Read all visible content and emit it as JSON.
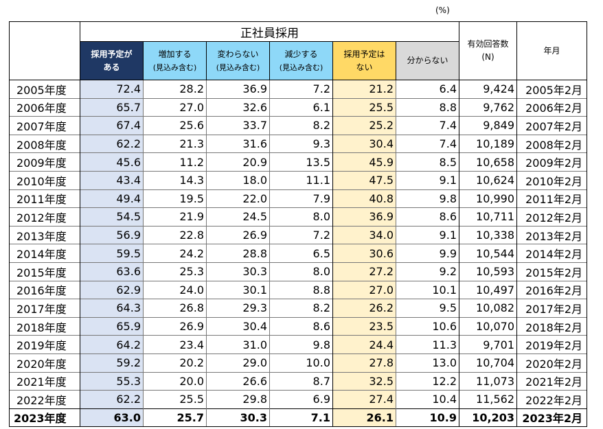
{
  "unit": "(%)",
  "header": {
    "group_title": "正社員採用",
    "col_yes": [
      "採用予定が",
      "ある"
    ],
    "col_increase": [
      "増加する",
      "(見込み含む)"
    ],
    "col_same": [
      "変わらない",
      "(見込み含む)"
    ],
    "col_decrease": [
      "減少する",
      "(見込み含む)"
    ],
    "col_no": [
      "採用予定は",
      "ない"
    ],
    "col_unknown": "分からない",
    "col_n": [
      "有効回答数",
      "(N)"
    ],
    "col_month": "年月"
  },
  "rows": [
    {
      "year": "2005年度",
      "yes": "72.4",
      "inc": "28.2",
      "same": "36.9",
      "dec": "7.2",
      "no": "21.2",
      "unk": "6.4",
      "n": "9,424",
      "month": "2005年2月"
    },
    {
      "year": "2006年度",
      "yes": "65.7",
      "inc": "27.0",
      "same": "32.6",
      "dec": "6.1",
      "no": "25.5",
      "unk": "8.8",
      "n": "9,762",
      "month": "2006年2月"
    },
    {
      "year": "2007年度",
      "yes": "67.4",
      "inc": "25.6",
      "same": "33.7",
      "dec": "8.2",
      "no": "25.2",
      "unk": "7.4",
      "n": "9,849",
      "month": "2007年2月"
    },
    {
      "year": "2008年度",
      "yes": "62.2",
      "inc": "21.3",
      "same": "31.6",
      "dec": "9.3",
      "no": "30.4",
      "unk": "7.4",
      "n": "10,189",
      "month": "2008年2月"
    },
    {
      "year": "2009年度",
      "yes": "45.6",
      "inc": "11.2",
      "same": "20.9",
      "dec": "13.5",
      "no": "45.9",
      "unk": "8.5",
      "n": "10,658",
      "month": "2009年2月"
    },
    {
      "year": "2010年度",
      "yes": "43.4",
      "inc": "14.3",
      "same": "18.0",
      "dec": "11.1",
      "no": "47.5",
      "unk": "9.1",
      "n": "10,624",
      "month": "2010年2月"
    },
    {
      "year": "2011年度",
      "yes": "49.4",
      "inc": "19.5",
      "same": "22.0",
      "dec": "7.9",
      "no": "40.8",
      "unk": "9.8",
      "n": "10,990",
      "month": "2011年2月"
    },
    {
      "year": "2012年度",
      "yes": "54.5",
      "inc": "21.9",
      "same": "24.5",
      "dec": "8.0",
      "no": "36.9",
      "unk": "8.6",
      "n": "10,711",
      "month": "2012年2月"
    },
    {
      "year": "2013年度",
      "yes": "56.9",
      "inc": "22.8",
      "same": "26.9",
      "dec": "7.2",
      "no": "34.0",
      "unk": "9.1",
      "n": "10,338",
      "month": "2013年2月"
    },
    {
      "year": "2014年度",
      "yes": "59.5",
      "inc": "24.2",
      "same": "28.8",
      "dec": "6.5",
      "no": "30.6",
      "unk": "9.9",
      "n": "10,544",
      "month": "2014年2月"
    },
    {
      "year": "2015年度",
      "yes": "63.6",
      "inc": "25.3",
      "same": "30.3",
      "dec": "8.0",
      "no": "27.2",
      "unk": "9.2",
      "n": "10,593",
      "month": "2015年2月"
    },
    {
      "year": "2016年度",
      "yes": "62.9",
      "inc": "24.0",
      "same": "30.1",
      "dec": "8.8",
      "no": "27.0",
      "unk": "10.1",
      "n": "10,497",
      "month": "2016年2月"
    },
    {
      "year": "2017年度",
      "yes": "64.3",
      "inc": "26.8",
      "same": "29.3",
      "dec": "8.2",
      "no": "26.2",
      "unk": "9.5",
      "n": "10,082",
      "month": "2017年2月"
    },
    {
      "year": "2018年度",
      "yes": "65.9",
      "inc": "26.9",
      "same": "30.4",
      "dec": "8.6",
      "no": "23.5",
      "unk": "10.6",
      "n": "10,070",
      "month": "2018年2月"
    },
    {
      "year": "2019年度",
      "yes": "64.2",
      "inc": "23.4",
      "same": "31.0",
      "dec": "9.8",
      "no": "24.4",
      "unk": "11.3",
      "n": "9,701",
      "month": "2019年2月"
    },
    {
      "year": "2020年度",
      "yes": "59.2",
      "inc": "20.2",
      "same": "29.0",
      "dec": "10.0",
      "no": "27.8",
      "unk": "13.0",
      "n": "10,704",
      "month": "2020年2月"
    },
    {
      "year": "2021年度",
      "yes": "55.3",
      "inc": "20.0",
      "same": "26.6",
      "dec": "8.7",
      "no": "32.5",
      "unk": "12.2",
      "n": "11,073",
      "month": "2021年2月"
    },
    {
      "year": "2022年度",
      "yes": "62.2",
      "inc": "25.5",
      "same": "29.8",
      "dec": "6.9",
      "no": "27.4",
      "unk": "10.4",
      "n": "11,562",
      "month": "2022年2月"
    },
    {
      "year": "2023年度",
      "yes": "63.0",
      "inc": "25.7",
      "same": "30.3",
      "dec": "7.1",
      "no": "26.1",
      "unk": "10.9",
      "n": "10,203",
      "month": "2023年2月"
    }
  ]
}
